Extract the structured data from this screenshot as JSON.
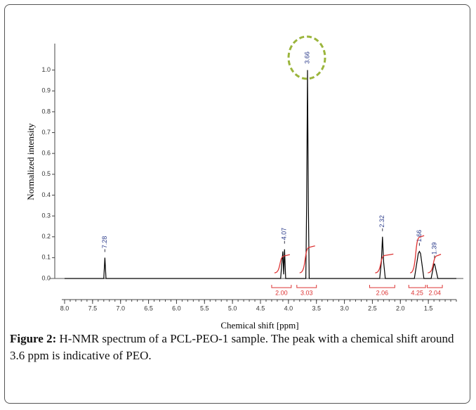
{
  "chart_data": {
    "type": "line",
    "xlabel": "Chemical shift [ppm]",
    "ylabel": "Normalized intensity",
    "x": [
      8.0,
      7.3,
      7.28,
      7.26,
      4.14,
      4.1,
      4.085,
      4.07,
      4.05,
      3.69,
      3.675,
      3.66,
      3.645,
      3.63,
      2.37,
      2.34,
      2.32,
      2.3,
      2.27,
      1.75,
      1.68,
      1.66,
      1.64,
      1.58,
      1.45,
      1.4,
      1.39,
      1.38,
      1.33,
      1.0
    ],
    "values": [
      0,
      0,
      0.1,
      0,
      0,
      0.13,
      0.02,
      0.14,
      0,
      0,
      0.37,
      1.0,
      0.37,
      0,
      0,
      0.08,
      0.2,
      0.08,
      0,
      0,
      0.12,
      0.13,
      0.12,
      0,
      0,
      0.07,
      0.07,
      0.06,
      0,
      0
    ],
    "color": "#000000",
    "xlim": [
      8.0,
      1.0
    ],
    "xticks": [
      {
        "value": 8,
        "label": "8.0"
      },
      7.5,
      {
        "value": 7,
        "label": "7.0"
      },
      6.5,
      {
        "value": 6,
        "label": "6.0"
      },
      5.5,
      {
        "value": 5,
        "label": "5.0"
      },
      4.5,
      {
        "value": 4,
        "label": "4.0"
      },
      3.5,
      {
        "value": 3,
        "label": "3.0"
      },
      2.5,
      {
        "value": 2,
        "label": "2.0"
      },
      1.5
    ],
    "ylim": [
      0,
      1.1
    ],
    "yticks": [
      {
        "value": 0,
        "label": "0.0"
      },
      0.1,
      0.2,
      0.3,
      0.4,
      0.5,
      0.6,
      0.7,
      0.8,
      0.9,
      {
        "value": 1,
        "label": "1.0"
      }
    ],
    "peak_labels": [
      7.28,
      4.07,
      3.66,
      2.32,
      1.66,
      1.39
    ],
    "integrals": [
      {
        "range": [
          4.3,
          3.95
        ],
        "value": 2,
        "label": "2.00"
      },
      {
        "range": [
          3.85,
          3.5
        ],
        "value": 3.03,
        "label": "3.03"
      },
      {
        "range": [
          2.55,
          2.1
        ],
        "value": 2.06,
        "label": "2.06"
      },
      {
        "range": [
          1.85,
          1.55
        ],
        "value": 4.25,
        "label": "4.25"
      },
      {
        "range": [
          1.52,
          1.25
        ],
        "value": 2.04,
        "label": "2.04"
      }
    ],
    "caption_label": "Figure 2:",
    "caption_text": "H-NMR spectrum of a PCL-PEO-1 sample. The peak with a chemical shift around 3.6 ppm is indicative of PEO."
  }
}
